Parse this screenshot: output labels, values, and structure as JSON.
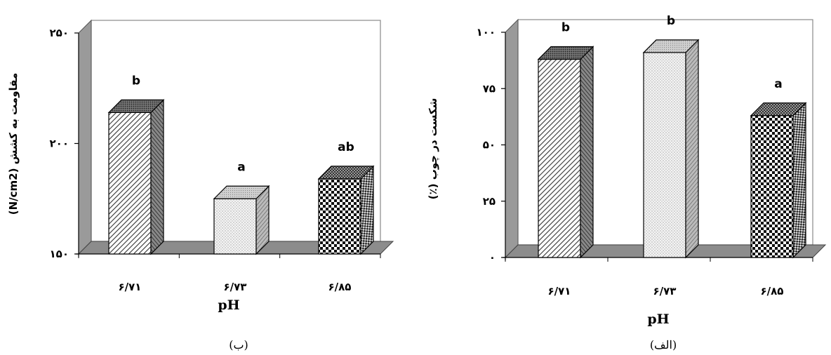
{
  "chart_data": [
    {
      "type": "bar",
      "caption": "(ب)",
      "ylabel": "مقاومت به کشش (N/cm2)",
      "xlabel": "pH",
      "categories": [
        "۶/۷۱",
        "۶/۷۳",
        "۶/۸۵"
      ],
      "values": [
        214,
        175,
        184
      ],
      "letters": [
        "b",
        "a",
        "ab"
      ],
      "ylim": [
        150,
        250
      ],
      "yticks": [
        150,
        200,
        250
      ],
      "ytick_labels": [
        "۱۵۰",
        "۲۰۰",
        "۲۵۰"
      ],
      "patterns": [
        "diagonal",
        "dots",
        "checker"
      ],
      "grid": false,
      "legend": "none"
    },
    {
      "type": "bar",
      "caption": "(الف)",
      "ylabel": "شکست در چوب (٪)",
      "xlabel": "pH",
      "categories": [
        "۶/۷۱",
        "۶/۷۳",
        "۶/۸۵"
      ],
      "values": [
        88,
        91,
        63
      ],
      "letters": [
        "b",
        "b",
        "a"
      ],
      "ylim": [
        0,
        100
      ],
      "yticks": [
        0,
        25,
        50,
        75,
        100
      ],
      "ytick_labels": [
        "۰",
        "۲۵",
        "۵۰",
        "۷۵",
        "۱۰۰"
      ],
      "patterns": [
        "diagonal",
        "dots",
        "checker"
      ],
      "grid": false,
      "legend": "none"
    }
  ]
}
